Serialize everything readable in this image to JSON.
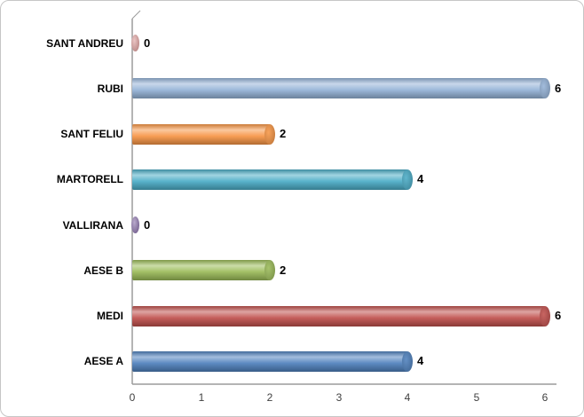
{
  "chart": {
    "background": "#ffffff",
    "frame_border_color": "#c6c6c6",
    "axis_color": "#9b9b9b"
  },
  "chart_data": {
    "type": "bar",
    "orientation": "horizontal",
    "title": "",
    "xlabel": "",
    "ylabel": "",
    "categories": [
      "SANT ANDREU",
      "RUBI",
      "SANT FELIU",
      "MARTORELL",
      "VALLIRANA",
      "AESE B",
      "MEDI",
      "AESE A"
    ],
    "values": [
      0,
      6,
      2,
      4,
      0,
      2,
      6,
      4
    ],
    "data_labels": [
      "0",
      "6",
      "2",
      "4",
      "0",
      "2",
      "6",
      "4"
    ],
    "bar_colors": [
      "#D99694",
      "#95B3D7",
      "#F79646",
      "#4BACC6",
      "#8064A2",
      "#9BBB59",
      "#C0504D",
      "#4F81BD"
    ],
    "xlim": [
      0,
      6
    ],
    "x_ticks": [
      "0",
      "1",
      "2",
      "3",
      "4",
      "5",
      "6"
    ],
    "grid": false,
    "legend": "none",
    "style": "3d-cylinder"
  }
}
